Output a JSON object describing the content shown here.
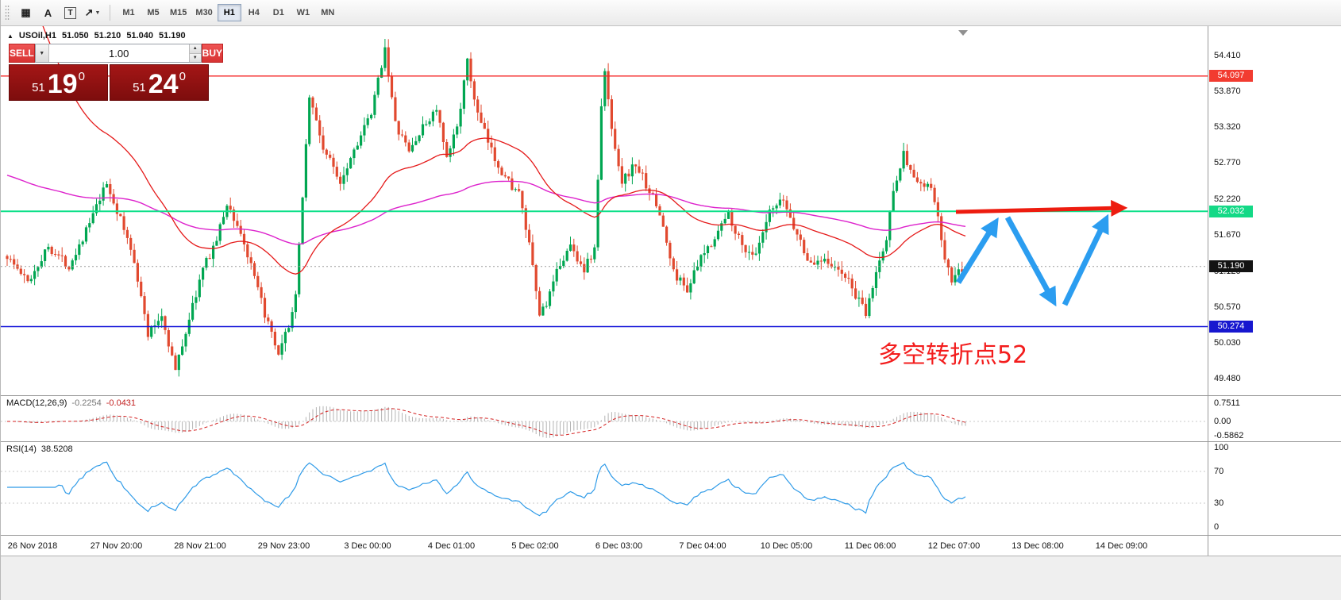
{
  "toolbar": {
    "tools": [
      {
        "name": "grid",
        "glyph": "▦"
      },
      {
        "name": "cursor",
        "glyph": "A"
      },
      {
        "name": "text",
        "glyph": "T"
      },
      {
        "name": "draw",
        "glyph": "↗"
      }
    ],
    "dropdown_caret": "▼",
    "timeframes": [
      "M1",
      "M5",
      "M15",
      "M30",
      "H1",
      "H4",
      "D1",
      "W1",
      "MN"
    ],
    "active_timeframe": "H1"
  },
  "chart": {
    "collapse_glyph": "▲",
    "symbol": "USOil,H1",
    "ohlc": {
      "open": "51.050",
      "high": "51.210",
      "low": "51.040",
      "close": "51.190"
    },
    "trade_panel": {
      "sell_label": "SELL",
      "buy_label": "BUY",
      "volume": "1.00",
      "caret_up": "▲",
      "caret_down": "▼",
      "sell_price": {
        "small": "51",
        "big": "19",
        "sup": "0"
      },
      "buy_price": {
        "small": "51",
        "big": "24",
        "sup": "0"
      }
    },
    "levels": {
      "resistance": {
        "value": 54.097,
        "color": "#f52525"
      },
      "pivot": {
        "value": 52.032,
        "color": "#0ee08a"
      },
      "support": {
        "value": 50.274,
        "color": "#1616d9"
      },
      "current": {
        "value": 51.19,
        "color": "#9a9a9a"
      }
    },
    "price_scale": [
      "54.410",
      "53.870",
      "53.320",
      "52.770",
      "52.220",
      "51.670",
      "51.120",
      "50.570",
      "50.030",
      "49.480"
    ],
    "badges": [
      {
        "text": "54.097",
        "value": 54.097,
        "color": "#f23b30"
      },
      {
        "text": "52.032",
        "value": 52.032,
        "color": "#13d986"
      },
      {
        "text": "51.190",
        "value": 51.19,
        "color": "#131313"
      },
      {
        "text": "50.274",
        "value": 50.274,
        "color": "#1717cf"
      }
    ]
  },
  "macd": {
    "title": "MACD(12,26,9)",
    "main_value": "-0.2254",
    "signal_value": "-0.0431",
    "scale": [
      "0.7511",
      "0.00",
      "-0.5862"
    ]
  },
  "rsi": {
    "title": "RSI(14)",
    "value": "38.5208",
    "scale": [
      "100",
      "70",
      "30",
      "0"
    ]
  },
  "time_axis": [
    "26 Nov 2018",
    "27 Nov 20:00",
    "28 Nov 21:00",
    "29 Nov 23:00",
    "3 Dec 00:00",
    "4 Dec 01:00",
    "5 Dec 02:00",
    "6 Dec 03:00",
    "7 Dec 04:00",
    "10 Dec 05:00",
    "11 Dec 06:00",
    "12 Dec 07:00",
    "13 Dec 08:00",
    "14 Dec 09:00"
  ],
  "chart_data": {
    "type": "candlestick",
    "symbol": "USOil",
    "timeframe": "H1",
    "ylim": [
      49.48,
      54.41
    ],
    "bars": 280,
    "last_close": 51.19,
    "levels": {
      "resistance": 54.097,
      "pivot": 52.032,
      "support": 50.274,
      "current_bid": 51.19,
      "current_ask": 51.24
    },
    "colors": {
      "up": "#00a651",
      "down": "#e1492f",
      "ma_fast": "#e51919",
      "ma_slow": "#dd22cc",
      "arrow_red": "#ed1c0f",
      "arrow_blue": "#2b9df0",
      "annotation": "#f31d1d",
      "macd_hist": "#b4b4b4",
      "macd_signal": "#d42222",
      "rsi_line": "#2f9be8"
    },
    "anchors": [
      [
        0,
        51.35
      ],
      [
        6,
        50.95
      ],
      [
        12,
        51.5
      ],
      [
        18,
        51.2
      ],
      [
        24,
        51.85
      ],
      [
        29,
        52.45
      ],
      [
        33,
        51.9
      ],
      [
        37,
        51.3
      ],
      [
        41,
        50.15
      ],
      [
        45,
        50.45
      ],
      [
        49,
        49.6
      ],
      [
        53,
        50.4
      ],
      [
        57,
        51.15
      ],
      [
        61,
        51.6
      ],
      [
        64,
        52.15
      ],
      [
        68,
        51.7
      ],
      [
        72,
        51.0
      ],
      [
        76,
        50.3
      ],
      [
        79,
        49.8
      ],
      [
        82,
        50.3
      ],
      [
        84,
        50.7
      ],
      [
        86,
        52.3
      ],
      [
        88,
        53.8
      ],
      [
        92,
        53.0
      ],
      [
        97,
        52.5
      ],
      [
        102,
        53.1
      ],
      [
        106,
        53.5
      ],
      [
        110,
        54.55
      ],
      [
        113,
        53.35
      ],
      [
        117,
        52.95
      ],
      [
        121,
        53.3
      ],
      [
        125,
        53.6
      ],
      [
        128,
        52.8
      ],
      [
        131,
        53.35
      ],
      [
        134,
        54.3
      ],
      [
        137,
        53.5
      ],
      [
        141,
        52.95
      ],
      [
        145,
        52.55
      ],
      [
        149,
        52.3
      ],
      [
        152,
        51.5
      ],
      [
        155,
        50.45
      ],
      [
        158,
        50.75
      ],
      [
        161,
        51.25
      ],
      [
        164,
        51.5
      ],
      [
        168,
        51.15
      ],
      [
        171,
        51.45
      ],
      [
        173,
        53.6
      ],
      [
        174,
        54.15
      ],
      [
        176,
        53.3
      ],
      [
        179,
        52.5
      ],
      [
        183,
        52.75
      ],
      [
        187,
        52.35
      ],
      [
        190,
        52.0
      ],
      [
        194,
        51.1
      ],
      [
        198,
        50.85
      ],
      [
        202,
        51.3
      ],
      [
        206,
        51.65
      ],
      [
        210,
        52.0
      ],
      [
        214,
        51.5
      ],
      [
        218,
        51.35
      ],
      [
        222,
        52.0
      ],
      [
        226,
        52.2
      ],
      [
        229,
        51.8
      ],
      [
        234,
        51.2
      ],
      [
        238,
        51.35
      ],
      [
        241,
        51.15
      ],
      [
        244,
        51.05
      ],
      [
        250,
        50.45
      ],
      [
        253,
        51.1
      ],
      [
        256,
        51.6
      ],
      [
        258,
        52.4
      ],
      [
        261,
        52.9
      ],
      [
        264,
        52.55
      ],
      [
        266,
        52.4
      ],
      [
        268,
        52.45
      ],
      [
        270,
        52.2
      ],
      [
        273,
        51.3
      ],
      [
        275,
        50.95
      ],
      [
        277,
        51.1
      ],
      [
        279,
        51.19
      ]
    ],
    "annotations": {
      "label": {
        "text": "多空转折点52",
        "x": 1105,
        "y": 424,
        "size": 30
      },
      "red_arrow": [
        1203,
        234,
        1413,
        229
      ],
      "blue_arrows": [
        [
          1206,
          323,
          1253,
          247
        ],
        [
          1268,
          241,
          1326,
          347
        ],
        [
          1340,
          351,
          1392,
          243
        ]
      ]
    },
    "indicators": [
      {
        "name": "MACD",
        "params": [
          12,
          26,
          9
        ],
        "main": -0.2254,
        "signal": -0.0431,
        "scale_max": 0.7511,
        "scale_min": -0.5862
      },
      {
        "name": "RSI",
        "params": [
          14
        ],
        "value": 38.5208,
        "levels": [
          70,
          30
        ]
      }
    ]
  }
}
